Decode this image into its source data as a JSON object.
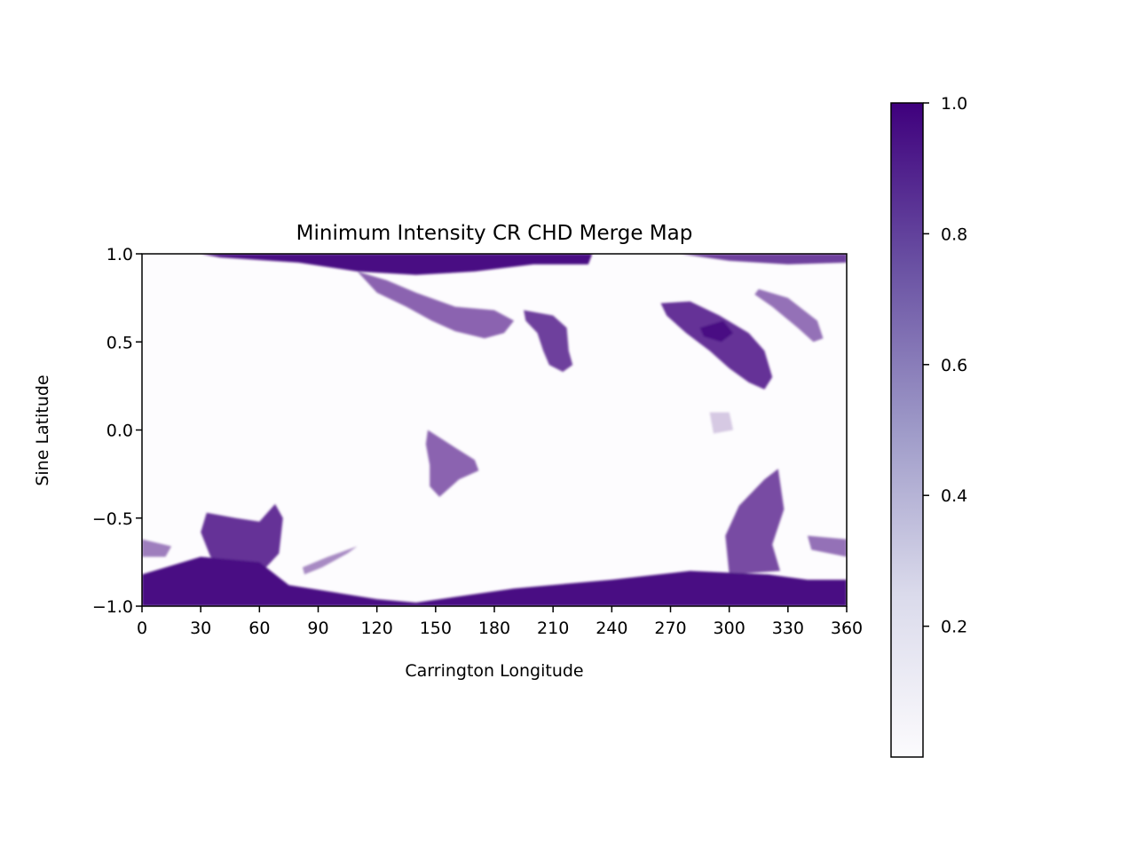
{
  "chart_data": {
    "type": "heatmap",
    "title": "Minimum Intensity CR CHD Merge Map",
    "xlabel": "Carrington Longitude",
    "ylabel": "Sine Latitude",
    "xlim": [
      0,
      360
    ],
    "ylim": [
      -1.0,
      1.0
    ],
    "xticks": [
      0,
      30,
      60,
      90,
      120,
      150,
      180,
      210,
      240,
      270,
      300,
      330,
      360
    ],
    "xtick_labels": [
      "0",
      "30",
      "60",
      "90",
      "120",
      "150",
      "180",
      "210",
      "240",
      "270",
      "300",
      "330",
      "360"
    ],
    "yticks": [
      1.0,
      0.5,
      0.0,
      -0.5,
      -1.0
    ],
    "ytick_labels": [
      "1.0",
      "0.5",
      "0.0",
      "−0.5",
      "−1.0"
    ],
    "colormap": "Purples",
    "colorbar": {
      "vmin": 0.0,
      "vmax": 1.0,
      "ticks": [
        1.0,
        0.8,
        0.6,
        0.4,
        0.2
      ],
      "tick_labels": [
        "1.0",
        "0.8",
        "0.6",
        "0.4",
        "0.2"
      ],
      "color_low": "#fcfbfd",
      "color_high": "#3f007d"
    },
    "grid": false,
    "regions": [
      {
        "name": "north-polar-band",
        "value": 0.95,
        "points": [
          [
            30,
            1.0
          ],
          [
            230,
            1.0
          ],
          [
            228,
            0.94
          ],
          [
            200,
            0.94
          ],
          [
            170,
            0.9
          ],
          [
            140,
            0.88
          ],
          [
            110,
            0.9
          ],
          [
            80,
            0.95
          ],
          [
            40,
            0.98
          ]
        ]
      },
      {
        "name": "north-polar-band-east",
        "value": 0.75,
        "points": [
          [
            275,
            1.0
          ],
          [
            360,
            1.0
          ],
          [
            360,
            0.95
          ],
          [
            330,
            0.94
          ],
          [
            300,
            0.96
          ]
        ]
      },
      {
        "name": "northern-tendril",
        "value": 0.6,
        "points": [
          [
            110,
            0.9
          ],
          [
            125,
            0.85
          ],
          [
            140,
            0.78
          ],
          [
            160,
            0.7
          ],
          [
            180,
            0.68
          ],
          [
            190,
            0.62
          ],
          [
            185,
            0.55
          ],
          [
            175,
            0.52
          ],
          [
            160,
            0.56
          ],
          [
            148,
            0.62
          ],
          [
            135,
            0.7
          ],
          [
            120,
            0.78
          ]
        ]
      },
      {
        "name": "north-hole-210",
        "value": 0.75,
        "points": [
          [
            195,
            0.68
          ],
          [
            210,
            0.65
          ],
          [
            217,
            0.58
          ],
          [
            218,
            0.45
          ],
          [
            220,
            0.37
          ],
          [
            215,
            0.33
          ],
          [
            208,
            0.37
          ],
          [
            205,
            0.45
          ],
          [
            202,
            0.55
          ],
          [
            196,
            0.62
          ]
        ]
      },
      {
        "name": "north-hole-300",
        "value": 0.8,
        "points": [
          [
            265,
            0.72
          ],
          [
            280,
            0.73
          ],
          [
            295,
            0.65
          ],
          [
            310,
            0.55
          ],
          [
            318,
            0.45
          ],
          [
            322,
            0.3
          ],
          [
            318,
            0.23
          ],
          [
            310,
            0.27
          ],
          [
            300,
            0.35
          ],
          [
            290,
            0.45
          ],
          [
            278,
            0.55
          ],
          [
            268,
            0.65
          ]
        ]
      },
      {
        "name": "north-hole-300-core",
        "value": 0.95,
        "points": [
          [
            285,
            0.58
          ],
          [
            297,
            0.62
          ],
          [
            302,
            0.55
          ],
          [
            296,
            0.5
          ],
          [
            287,
            0.53
          ]
        ]
      },
      {
        "name": "north-streak-330",
        "value": 0.55,
        "points": [
          [
            315,
            0.8
          ],
          [
            330,
            0.75
          ],
          [
            345,
            0.62
          ],
          [
            348,
            0.52
          ],
          [
            343,
            0.5
          ],
          [
            335,
            0.58
          ],
          [
            322,
            0.7
          ],
          [
            313,
            0.77
          ]
        ]
      },
      {
        "name": "equatorial-hole",
        "value": 0.6,
        "points": [
          [
            146,
            0.0
          ],
          [
            153,
            -0.05
          ],
          [
            160,
            -0.1
          ],
          [
            170,
            -0.17
          ],
          [
            172,
            -0.23
          ],
          [
            162,
            -0.28
          ],
          [
            157,
            -0.33
          ],
          [
            152,
            -0.38
          ],
          [
            147,
            -0.32
          ],
          [
            147,
            -0.2
          ],
          [
            145,
            -0.08
          ]
        ]
      },
      {
        "name": "equatorial-patch-295",
        "value": 0.2,
        "points": [
          [
            290,
            0.1
          ],
          [
            300,
            0.1
          ],
          [
            302,
            0.0
          ],
          [
            292,
            -0.02
          ]
        ]
      },
      {
        "name": "south-hole-45",
        "value": 0.8,
        "points": [
          [
            33,
            -0.47
          ],
          [
            48,
            -0.5
          ],
          [
            60,
            -0.52
          ],
          [
            68,
            -0.42
          ],
          [
            72,
            -0.5
          ],
          [
            70,
            -0.7
          ],
          [
            60,
            -0.82
          ],
          [
            45,
            -0.82
          ],
          [
            35,
            -0.72
          ],
          [
            30,
            -0.58
          ]
        ]
      },
      {
        "name": "south-streak-100",
        "value": 0.45,
        "points": [
          [
            82,
            -0.78
          ],
          [
            95,
            -0.72
          ],
          [
            110,
            -0.66
          ],
          [
            105,
            -0.7
          ],
          [
            92,
            -0.78
          ],
          [
            83,
            -0.82
          ]
        ]
      },
      {
        "name": "south-hole-310",
        "value": 0.7,
        "points": [
          [
            305,
            -0.43
          ],
          [
            318,
            -0.28
          ],
          [
            325,
            -0.22
          ],
          [
            328,
            -0.45
          ],
          [
            322,
            -0.65
          ],
          [
            326,
            -0.8
          ],
          [
            300,
            -0.82
          ],
          [
            298,
            -0.6
          ]
        ]
      },
      {
        "name": "south-west-edge",
        "value": 0.5,
        "points": [
          [
            0,
            -0.62
          ],
          [
            15,
            -0.66
          ],
          [
            12,
            -0.72
          ],
          [
            0,
            -0.72
          ]
        ]
      },
      {
        "name": "south-east-edge",
        "value": 0.55,
        "points": [
          [
            340,
            -0.6
          ],
          [
            360,
            -0.62
          ],
          [
            360,
            -0.72
          ],
          [
            342,
            -0.68
          ]
        ]
      },
      {
        "name": "south-polar-band",
        "value": 0.95,
        "points": [
          [
            0,
            -0.82
          ],
          [
            30,
            -0.72
          ],
          [
            60,
            -0.75
          ],
          [
            75,
            -0.88
          ],
          [
            120,
            -0.96
          ],
          [
            140,
            -0.98
          ],
          [
            190,
            -0.9
          ],
          [
            240,
            -0.85
          ],
          [
            280,
            -0.8
          ],
          [
            320,
            -0.82
          ],
          [
            340,
            -0.85
          ],
          [
            360,
            -0.85
          ],
          [
            360,
            -1.0
          ],
          [
            0,
            -1.0
          ]
        ]
      }
    ]
  }
}
